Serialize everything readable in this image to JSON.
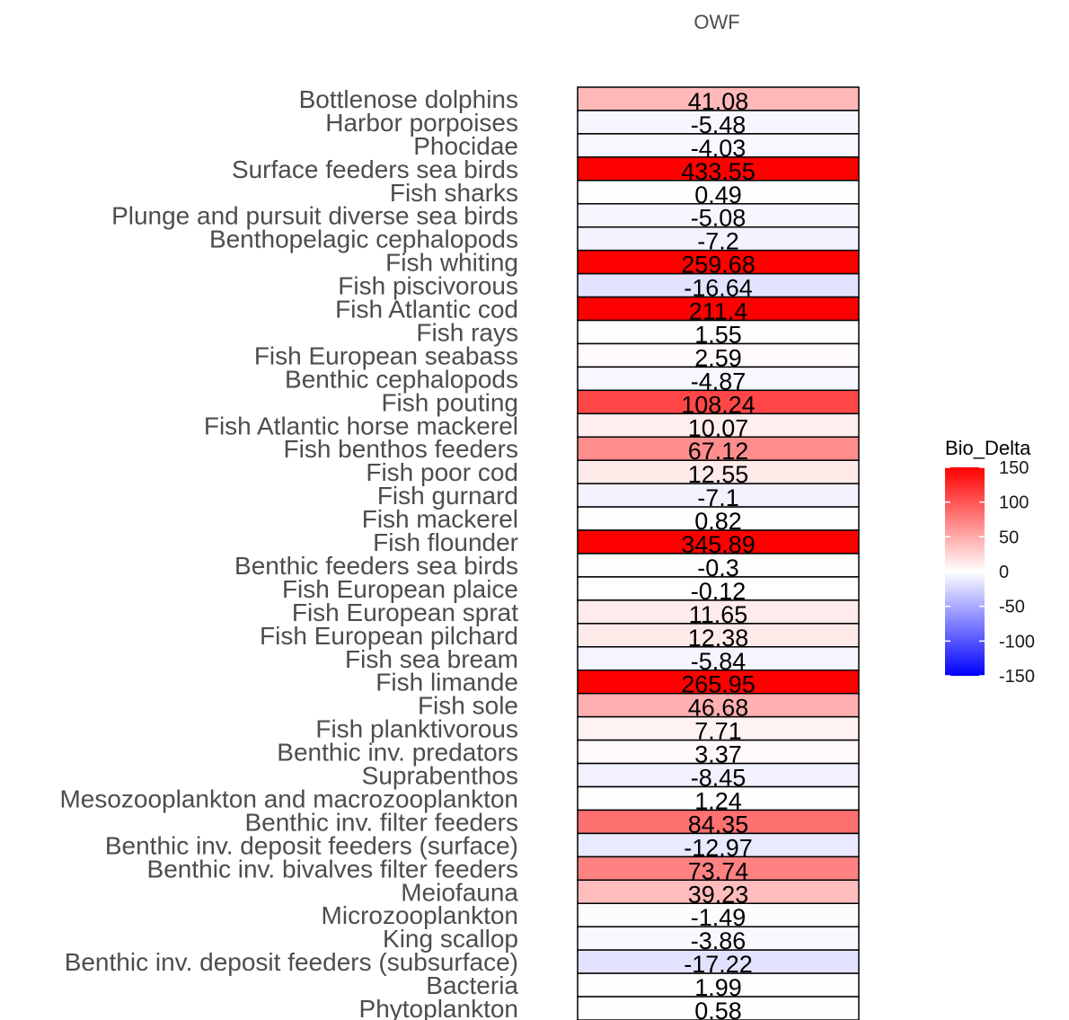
{
  "chart_data": {
    "type": "heatmap",
    "title": "OWF",
    "xlabel": "",
    "ylabel": "",
    "rows": [
      {
        "label": "Bottlenose dolphins",
        "value": 41.08,
        "text": "41.08"
      },
      {
        "label": "Harbor porpoises",
        "value": -5.48,
        "text": "-5.48"
      },
      {
        "label": "Phocidae",
        "value": -4.03,
        "text": "-4.03"
      },
      {
        "label": "Surface feeders sea birds",
        "value": 433.55,
        "text": "433.55"
      },
      {
        "label": "Fish sharks",
        "value": 0.49,
        "text": "0.49"
      },
      {
        "label": "Plunge and pursuit diverse sea birds",
        "value": -5.08,
        "text": "-5.08"
      },
      {
        "label": "Benthopelagic cephalopods",
        "value": -7.2,
        "text": "-7.2"
      },
      {
        "label": "Fish whiting",
        "value": 259.68,
        "text": "259.68"
      },
      {
        "label": "Fish piscivorous",
        "value": -16.64,
        "text": "-16.64"
      },
      {
        "label": "Fish Atlantic cod",
        "value": 211.4,
        "text": "211.4"
      },
      {
        "label": "Fish rays",
        "value": 1.55,
        "text": "1.55"
      },
      {
        "label": "Fish European seabass",
        "value": 2.59,
        "text": "2.59"
      },
      {
        "label": "Benthic cephalopods",
        "value": -4.87,
        "text": "-4.87"
      },
      {
        "label": "Fish pouting",
        "value": 108.24,
        "text": "108.24"
      },
      {
        "label": "Fish Atlantic horse mackerel",
        "value": 10.07,
        "text": "10.07"
      },
      {
        "label": "Fish benthos feeders",
        "value": 67.12,
        "text": "67.12"
      },
      {
        "label": "Fish poor cod",
        "value": 12.55,
        "text": "12.55"
      },
      {
        "label": "Fish gurnard",
        "value": -7.1,
        "text": "-7.1"
      },
      {
        "label": "Fish mackerel",
        "value": 0.82,
        "text": "0.82"
      },
      {
        "label": "Fish flounder",
        "value": 345.89,
        "text": "345.89"
      },
      {
        "label": "Benthic feeders sea birds",
        "value": -0.3,
        "text": "-0.3"
      },
      {
        "label": "Fish European plaice",
        "value": -0.12,
        "text": "-0.12"
      },
      {
        "label": "Fish European sprat",
        "value": 11.65,
        "text": "11.65"
      },
      {
        "label": "Fish European pilchard",
        "value": 12.38,
        "text": "12.38"
      },
      {
        "label": "Fish sea bream",
        "value": -5.84,
        "text": "-5.84"
      },
      {
        "label": "Fish limande",
        "value": 265.95,
        "text": "265.95"
      },
      {
        "label": "Fish sole",
        "value": 46.68,
        "text": "46.68"
      },
      {
        "label": "Fish planktivorous",
        "value": 7.71,
        "text": "7.71"
      },
      {
        "label": "Benthic inv. predators",
        "value": 3.37,
        "text": "3.37"
      },
      {
        "label": "Suprabenthos",
        "value": -8.45,
        "text": "-8.45"
      },
      {
        "label": "Mesozooplankton and macrozooplankton",
        "value": 1.24,
        "text": "1.24"
      },
      {
        "label": "Benthic inv. filter feeders",
        "value": 84.35,
        "text": "84.35"
      },
      {
        "label": "Benthic inv. deposit feeders (surface)",
        "value": -12.97,
        "text": "-12.97"
      },
      {
        "label": "Benthic inv. bivalves filter feeders",
        "value": 73.74,
        "text": "73.74"
      },
      {
        "label": "Meiofauna",
        "value": 39.23,
        "text": "39.23"
      },
      {
        "label": "Microzooplankton",
        "value": -1.49,
        "text": "-1.49"
      },
      {
        "label": "King scallop",
        "value": -3.86,
        "text": "-3.86"
      },
      {
        "label": "Benthic inv. deposit feeders (subsurface)",
        "value": -17.22,
        "text": "-17.22"
      },
      {
        "label": "Bacteria",
        "value": 1.99,
        "text": "1.99"
      },
      {
        "label": "Phytoplankton",
        "value": 0.58,
        "text": "0.58"
      }
    ],
    "legend": {
      "title": "Bio_Delta",
      "placement": "right",
      "ticks": [
        "150",
        "100",
        "50",
        "0",
        "-50",
        "-100",
        "-150"
      ],
      "tick_values": [
        150,
        100,
        50,
        0,
        -50,
        -100,
        -150
      ],
      "range": [
        -150,
        150
      ]
    },
    "colors": {
      "high": "#ff0000",
      "mid": "#ffffff",
      "low": "#0000ff"
    }
  }
}
